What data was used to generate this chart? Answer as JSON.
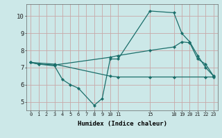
{
  "xlabel": "Humidex (Indice chaleur)",
  "bg_color": "#cce8e8",
  "grid_color": "#c8a8a8",
  "line_color": "#1a6e6a",
  "xlim": [
    -0.5,
    23.5
  ],
  "ylim": [
    4.5,
    10.7
  ],
  "yticks": [
    5,
    6,
    7,
    8,
    9,
    10
  ],
  "xtick_positions": [
    0,
    1,
    2,
    3,
    4,
    5,
    6,
    7,
    8,
    9,
    10,
    11,
    15,
    18,
    19,
    20,
    21,
    22,
    23
  ],
  "xtick_labels": [
    "0",
    "1",
    "2",
    "3",
    "4",
    "5",
    "6",
    "7",
    "8",
    "9",
    "10",
    "11",
    "15",
    "18",
    "19",
    "20",
    "21",
    "22",
    "23"
  ],
  "lines": [
    {
      "x": [
        0,
        1,
        3,
        4,
        5,
        6,
        8,
        9,
        10,
        11,
        15,
        18,
        19,
        20,
        21,
        22,
        23
      ],
      "y": [
        7.3,
        7.2,
        7.1,
        6.3,
        6.0,
        5.8,
        4.8,
        5.2,
        7.5,
        7.5,
        10.3,
        10.2,
        9.0,
        8.5,
        7.7,
        7.0,
        6.5
      ]
    },
    {
      "x": [
        0,
        1,
        3,
        10,
        11,
        15,
        18,
        19,
        20,
        21,
        22,
        23
      ],
      "y": [
        7.3,
        7.2,
        7.15,
        7.6,
        7.7,
        8.0,
        8.2,
        8.5,
        8.45,
        7.5,
        7.2,
        6.5
      ]
    },
    {
      "x": [
        0,
        3,
        10,
        11,
        15,
        18,
        22,
        23
      ],
      "y": [
        7.3,
        7.2,
        6.5,
        6.45,
        6.45,
        6.45,
        6.45,
        6.45
      ]
    }
  ]
}
